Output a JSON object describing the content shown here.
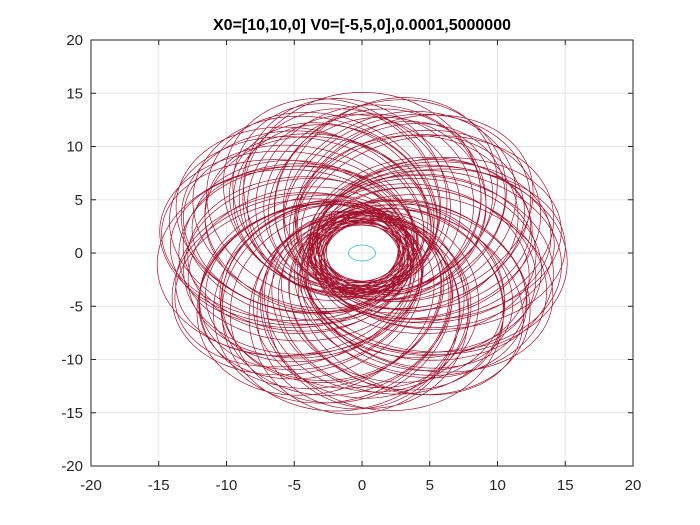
{
  "chart_data": {
    "type": "line",
    "title": "X0=[10,10,0] V0=[-5,5,0],0.0001,5000000",
    "xlabel": "",
    "ylabel": "",
    "xlim": [
      -20,
      20
    ],
    "ylim": [
      -20,
      20
    ],
    "xticks": [
      -20,
      -15,
      -10,
      -5,
      0,
      5,
      10,
      15,
      20
    ],
    "yticks": [
      -20,
      -15,
      -10,
      -5,
      0,
      5,
      10,
      15,
      20
    ],
    "xtick_labels": [
      "-20",
      "-15",
      "-10",
      "-5",
      "0",
      "5",
      "10",
      "15",
      "20"
    ],
    "ytick_labels": [
      "-20",
      "-15",
      "-10",
      "-5",
      "0",
      "5",
      "10",
      "15",
      "20"
    ],
    "grid": true,
    "legend": "none",
    "series": [
      {
        "kind": "precessing-orbit",
        "color": "#A2142F",
        "center": [
          0,
          0
        ],
        "apoapsis_range": [
          12.8,
          15.2
        ],
        "periapsis_range": [
          2.6,
          3.8
        ],
        "inner_hole_radius": 2.4
      },
      {
        "kind": "ellipse",
        "color": "#4DBEEE",
        "center": [
          0,
          0
        ],
        "semi_axes": [
          1.0,
          0.75
        ]
      }
    ],
    "colors": {
      "orbit": "#A2142F",
      "central": "#4DBEEE",
      "grid": "#e6e6e6",
      "axis": "#262626"
    }
  }
}
